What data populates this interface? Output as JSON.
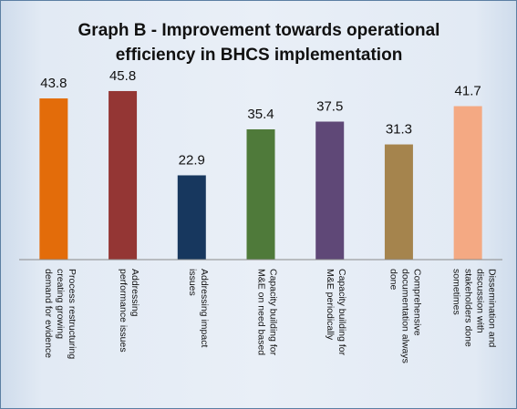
{
  "chart_data": {
    "type": "bar",
    "title_lines": [
      "Graph B - Improvement towards operational",
      "efficiency in BHCS implementation"
    ],
    "xlabel": "",
    "ylabel": "",
    "ylim": [
      0,
      50
    ],
    "grid": false,
    "legend": "none",
    "categories": [
      [
        "Process restructuring",
        "creating growing",
        "demand for evidence"
      ],
      [
        "Addressing",
        "performance issues"
      ],
      [
        "Addressing impact",
        "issues"
      ],
      [
        "Capacity building for",
        "M&E on need based"
      ],
      [
        "Capacity building for",
        "M&E periodically"
      ],
      [
        "Comprehensive",
        "documentation always",
        "done"
      ],
      [
        "Dissemination and",
        "discussion with",
        "stakeholders done",
        "sometimes"
      ]
    ],
    "values": [
      43.8,
      45.8,
      22.9,
      35.4,
      37.5,
      31.3,
      41.7
    ],
    "colors": [
      "#e36c0a",
      "#943634",
      "#17375e",
      "#4f7a3a",
      "#5f4877",
      "#a5844d",
      "#f4a983"
    ]
  }
}
